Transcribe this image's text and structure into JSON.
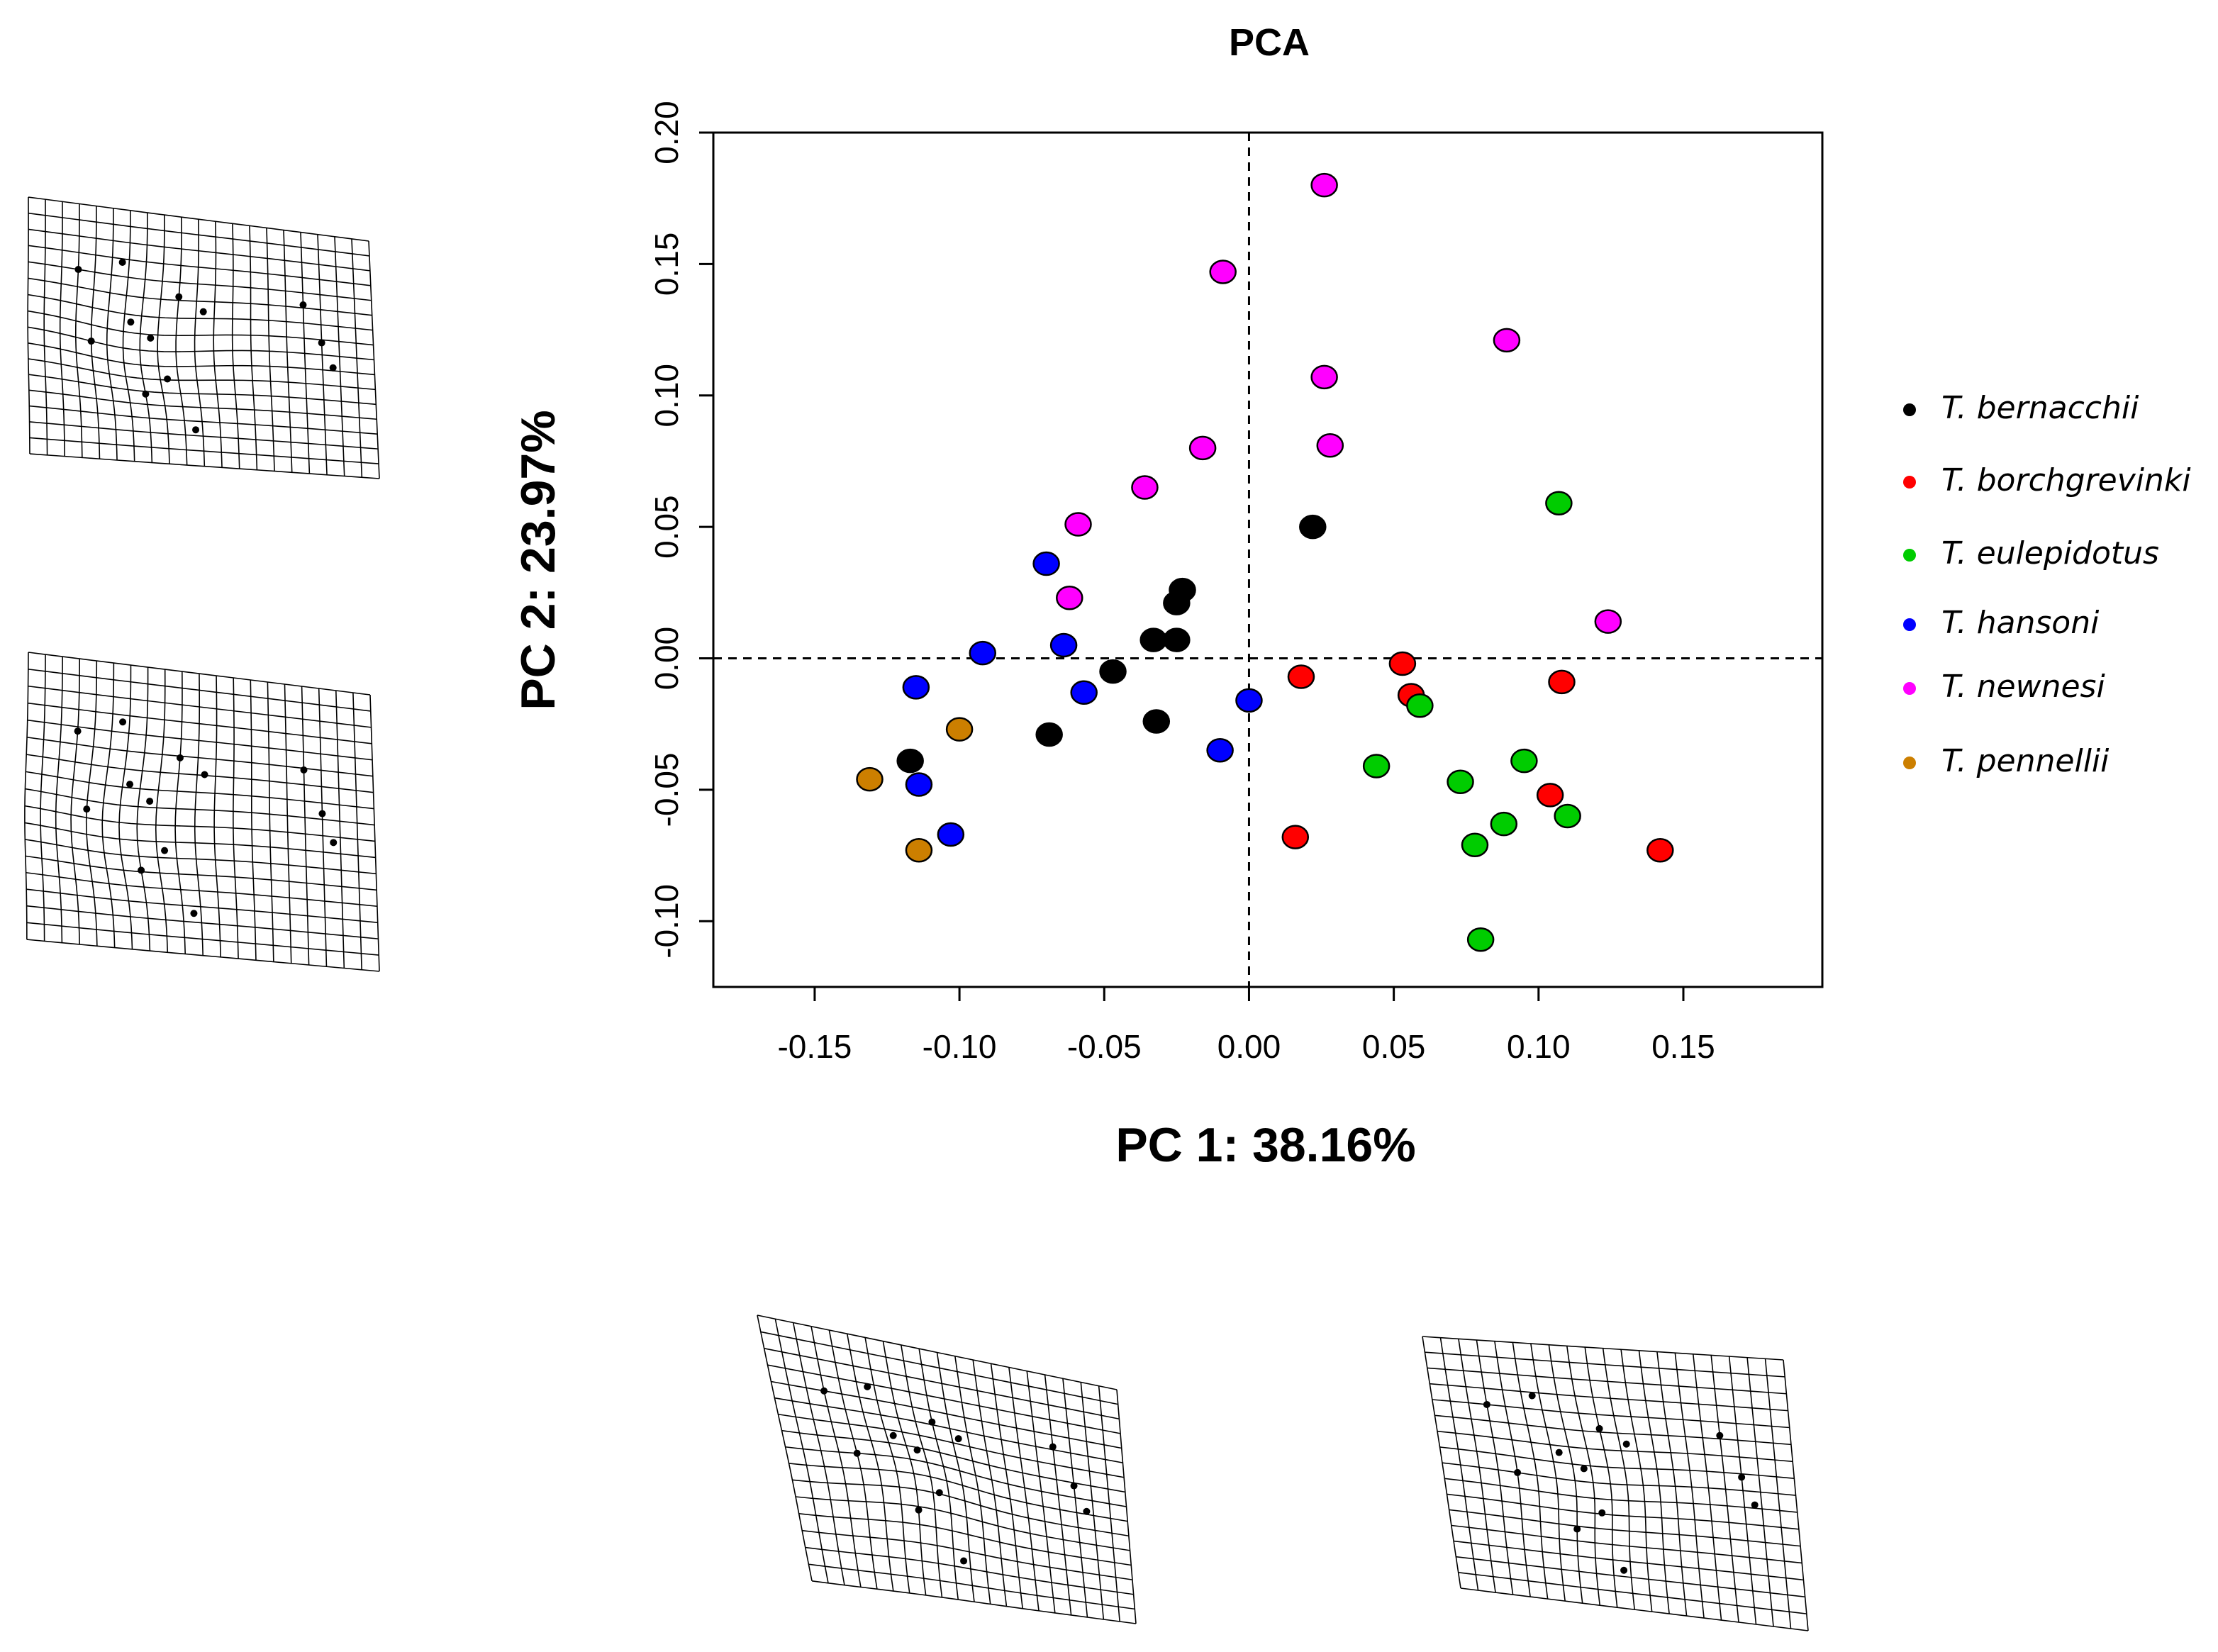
{
  "chart_data": {
    "type": "scatter",
    "title": "PCA",
    "xlabel": "PC 1: 38.16%",
    "ylabel": "PC 2: 23.97%",
    "xlim": [
      -0.185,
      0.198
    ],
    "ylim": [
      -0.125,
      0.2
    ],
    "x_ticks": [
      "-0.15",
      "-0.10",
      "-0.05",
      "0.00",
      "0.05",
      "0.10",
      "0.15"
    ],
    "y_ticks": [
      "-0.10",
      "-0.05",
      "0.00",
      "0.05",
      "0.10",
      "0.15",
      "0.20"
    ],
    "reference_lines": {
      "x": 0.0,
      "y": 0.0,
      "style": "dashed"
    },
    "grid": false,
    "legend_position": "right",
    "series": [
      {
        "name": "T. bernacchii",
        "color": "#000000",
        "points": [
          [
            0.022,
            0.05
          ],
          [
            -0.023,
            0.026
          ],
          [
            -0.025,
            0.021
          ],
          [
            -0.033,
            0.007
          ],
          [
            -0.025,
            0.007
          ],
          [
            -0.047,
            -0.005
          ],
          [
            -0.069,
            -0.029
          ],
          [
            -0.032,
            -0.024
          ],
          [
            -0.117,
            -0.039
          ]
        ]
      },
      {
        "name": "T. borchgrevinki",
        "color": "#ff0000",
        "points": [
          [
            0.018,
            -0.007
          ],
          [
            0.053,
            -0.002
          ],
          [
            0.056,
            -0.014
          ],
          [
            0.108,
            -0.009
          ],
          [
            0.104,
            -0.052
          ],
          [
            0.016,
            -0.068
          ],
          [
            0.142,
            -0.073
          ]
        ]
      },
      {
        "name": "T. eulepidotus",
        "color": "#00cc00",
        "points": [
          [
            0.107,
            0.059
          ],
          [
            0.059,
            -0.018
          ],
          [
            0.044,
            -0.041
          ],
          [
            0.073,
            -0.047
          ],
          [
            0.095,
            -0.039
          ],
          [
            0.088,
            -0.063
          ],
          [
            0.078,
            -0.071
          ],
          [
            0.11,
            -0.06
          ],
          [
            0.08,
            -0.107
          ]
        ]
      },
      {
        "name": "T. hansoni",
        "color": "#0000ff",
        "points": [
          [
            -0.07,
            0.036
          ],
          [
            -0.092,
            0.002
          ],
          [
            -0.064,
            0.005
          ],
          [
            -0.057,
            -0.013
          ],
          [
            -0.115,
            -0.011
          ],
          [
            -0.114,
            -0.048
          ],
          [
            -0.103,
            -0.067
          ],
          [
            0.0,
            -0.016
          ],
          [
            -0.01,
            -0.035
          ]
        ]
      },
      {
        "name": "T. newnesi",
        "color": "#ff00ff",
        "points": [
          [
            0.026,
            0.18
          ],
          [
            -0.009,
            0.147
          ],
          [
            0.089,
            0.121
          ],
          [
            0.026,
            0.107
          ],
          [
            0.028,
            0.081
          ],
          [
            -0.016,
            0.08
          ],
          [
            -0.036,
            0.065
          ],
          [
            -0.059,
            0.051
          ],
          [
            -0.062,
            0.023
          ],
          [
            0.124,
            0.014
          ]
        ]
      },
      {
        "name": "T. pennellii",
        "color": "#cc7f00",
        "points": [
          [
            -0.1,
            -0.027
          ],
          [
            -0.131,
            -0.046
          ],
          [
            -0.114,
            -0.073
          ]
        ]
      }
    ]
  }
}
